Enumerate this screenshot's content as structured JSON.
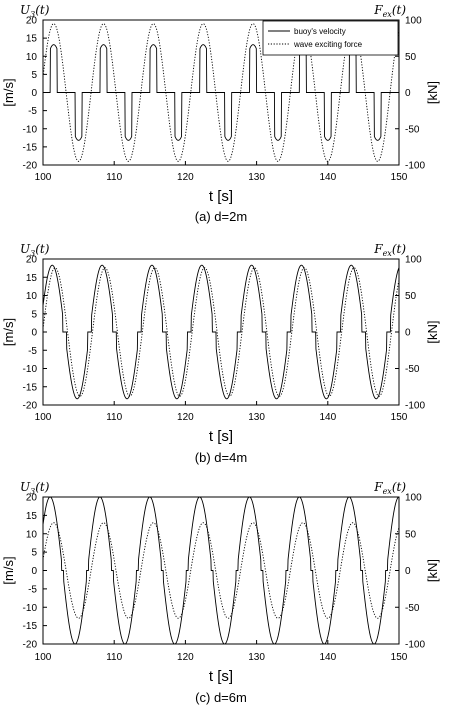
{
  "chart_data": [
    {
      "type": "line",
      "caption": "(a) d=2m",
      "left_label": "U_3(t)",
      "right_label": "F_ex(t)",
      "xlabel": "t [s]",
      "ylabel": "[m/s]",
      "y2label": "[kN]",
      "xlim": [
        100,
        150
      ],
      "ylim": [
        -20,
        20
      ],
      "y2lim": [
        -100,
        100
      ],
      "xticks": [
        100,
        110,
        120,
        130,
        140,
        150
      ],
      "yticks": [
        -20,
        -15,
        -10,
        -5,
        0,
        5,
        10,
        15,
        20
      ],
      "y2ticks": [
        -100,
        -50,
        0,
        50,
        100
      ],
      "grid": false,
      "legend": {
        "position": "top-right",
        "entries": [
          "buoy's velocity",
          "wave exciting force"
        ]
      },
      "series": [
        {
          "name": "buoy's velocity",
          "axis": "left",
          "style": "solid",
          "period": 7,
          "amplitude": 13.2,
          "phase_x": 101.5,
          "zero_band": 12.0
        },
        {
          "name": "wave exciting force",
          "axis": "right",
          "style": "dotted",
          "period": 7,
          "amplitude": 95,
          "phase_x": 101.5
        }
      ]
    },
    {
      "type": "line",
      "caption": "(b) d=4m",
      "left_label": "U_3(t)",
      "right_label": "F_ex(t)",
      "xlabel": "t [s]",
      "ylabel": "[m/s]",
      "y2label": "[kN]",
      "xlim": [
        100,
        150
      ],
      "ylim": [
        -20,
        20
      ],
      "y2lim": [
        -100,
        100
      ],
      "xticks": [
        100,
        110,
        120,
        130,
        140,
        150
      ],
      "yticks": [
        -20,
        -15,
        -10,
        -5,
        0,
        5,
        10,
        15,
        20
      ],
      "y2ticks": [
        -100,
        -50,
        0,
        50,
        100
      ],
      "grid": false,
      "series": [
        {
          "name": "buoy's velocity",
          "axis": "left",
          "style": "solid",
          "period": 7,
          "amplitude": 18.3,
          "phase_x": 101.3,
          "zero_band": 4.5
        },
        {
          "name": "wave exciting force",
          "axis": "right",
          "style": "dotted",
          "period": 7,
          "amplitude": 88,
          "phase_x": 101.7
        }
      ]
    },
    {
      "type": "line",
      "caption": "(c) d=6m",
      "left_label": "U_3(t)",
      "right_label": "F_ex(t)",
      "xlabel": "t [s]",
      "ylabel": "[m/s]",
      "y2label": "[kN]",
      "xlim": [
        100,
        150
      ],
      "ylim": [
        -20,
        20
      ],
      "y2lim": [
        -100,
        100
      ],
      "xticks": [
        100,
        110,
        120,
        130,
        140,
        150
      ],
      "yticks": [
        -20,
        -15,
        -10,
        -5,
        0,
        5,
        10,
        15,
        20
      ],
      "y2ticks": [
        -100,
        -50,
        0,
        50,
        100
      ],
      "grid": false,
      "series": [
        {
          "name": "buoy's velocity",
          "axis": "left",
          "style": "solid",
          "period": 7,
          "amplitude": 20,
          "phase_x": 101.0,
          "zero_band": 2.5
        },
        {
          "name": "wave exciting force",
          "axis": "right",
          "style": "dotted",
          "period": 7,
          "amplitude": 65,
          "phase_x": 101.5
        }
      ]
    }
  ]
}
